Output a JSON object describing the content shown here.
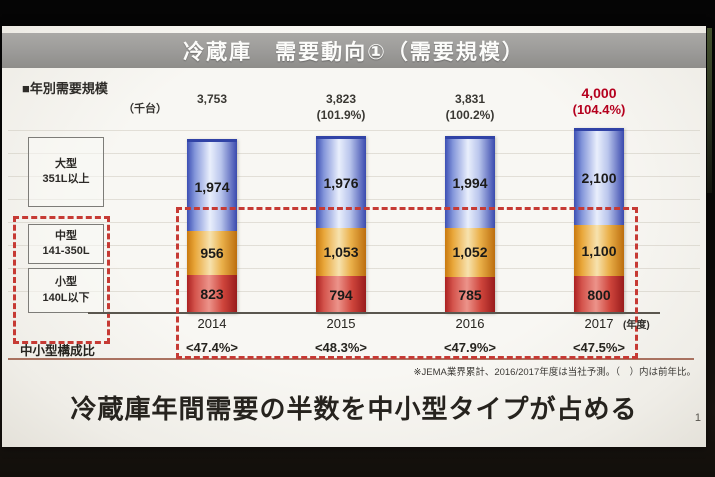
{
  "slide": {
    "title": "冷蔵庫　需要動向①（需要規模）",
    "section_label": "■年別需要規模",
    "unit_label": "（千台）",
    "axis_year_label": "(年度)",
    "footnote": "※JEMA業界累計、2016/2017年度は当社予測。（　）内は前年比。",
    "message": "冷蔵庫年間需要の半数を中小型タイプが占める",
    "page_number": "1"
  },
  "chart_data": {
    "type": "bar",
    "stacked": true,
    "title": "年別需要規模",
    "unit": "千台",
    "categories": [
      "2014",
      "2015",
      "2016",
      "2017"
    ],
    "series": [
      {
        "name": "大型",
        "range": "351L以上",
        "key": "large",
        "values": [
          1974,
          1976,
          1994,
          2100
        ]
      },
      {
        "name": "中型",
        "range": "141-350L",
        "key": "medium",
        "values": [
          956,
          1053,
          1052,
          1100
        ]
      },
      {
        "name": "小型",
        "range": "140L以下",
        "key": "small",
        "values": [
          823,
          794,
          785,
          800
        ]
      }
    ],
    "totals": [
      3753,
      3823,
      3831,
      4000
    ],
    "total_labels": [
      "3,753",
      "3,823",
      "3,831",
      "4,000"
    ],
    "yoy_labels": [
      "",
      "(101.9%)",
      "(100.2%)",
      "(104.4%)"
    ],
    "highlight_column": 3,
    "composition_label": "中小型構成比",
    "composition_ratios": [
      "<47.4%>",
      "<48.3%>",
      "<47.9%>",
      "<47.5%>"
    ],
    "ylim": [
      0,
      4000
    ],
    "xlabel_unit": "(年度)",
    "legend_position": "left",
    "grid": "faint-horizontal",
    "dashed_outline_groups": [
      "中型",
      "小型"
    ]
  },
  "colors": {
    "highlight_red": "#b5001e",
    "dashed_border_red": "#c63a34",
    "bar_large_blue": "#4053b8",
    "bar_medium_orange": "#e09a2e",
    "bar_small_red": "#c23030",
    "title_bar_gray": "#9b9a98"
  }
}
